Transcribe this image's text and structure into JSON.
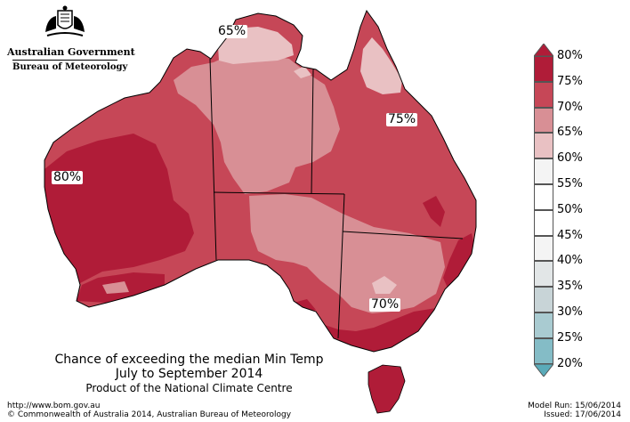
{
  "header": {
    "government": "Australian Government",
    "bureau": "Bureau of Meteorology"
  },
  "map": {
    "labels": [
      "65%",
      "75%",
      "80%",
      "70%"
    ],
    "colors": {
      "c80": "#b01c38",
      "c75": "#c64757",
      "c70": "#d88f95",
      "c65": "#e9c1c3",
      "border": "#000000"
    }
  },
  "legend": {
    "ticks": [
      "80%",
      "75%",
      "70%",
      "65%",
      "60%",
      "55%",
      "50%",
      "45%",
      "40%",
      "35%",
      "30%",
      "25%",
      "20%"
    ],
    "colors": [
      "#b01c38",
      "#c64757",
      "#d88f95",
      "#e9c1c3",
      "#f4f4f4",
      "#ffffff",
      "#ffffff",
      "#f4f4f4",
      "#e2e6e7",
      "#c8d4d7",
      "#a9cbd1",
      "#84bcc6",
      "#5aabb9"
    ]
  },
  "caption": {
    "line1": "Chance of exceeding the median Min Temp",
    "line2": "July to September 2014",
    "line3": "Product of the National Climate Centre"
  },
  "footer": {
    "url": "http://www.bom.gov.au",
    "copyright": "© Commonwealth of Australia 2014, Australian Bureau of Meteorology",
    "model_run": "Model Run: 15/06/2014",
    "issued": "Issued: 17/06/2014"
  }
}
